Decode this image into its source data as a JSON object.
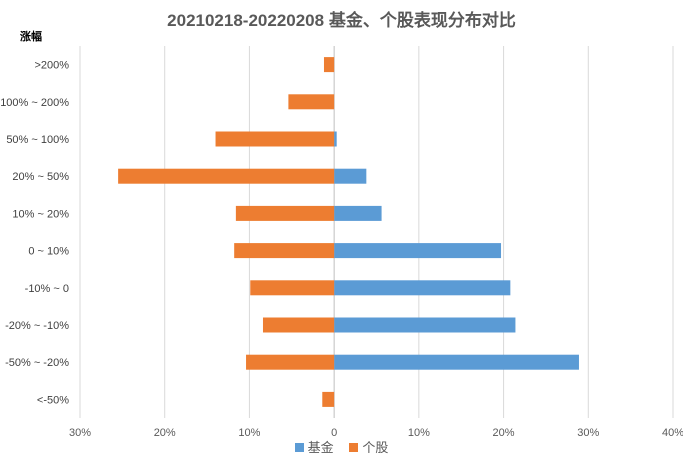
{
  "chart_data": {
    "type": "bar",
    "orientation": "horizontal",
    "title": "20210218-20220208 基金、个股表现分布对比",
    "ylabel": "涨幅",
    "categories": [
      ">200%",
      "100% ~ 200%",
      "50% ~ 100%",
      "20% ~ 50%",
      "10% ~ 20%",
      "0 ~ 10%",
      "-10% ~ 0",
      "-20% ~ -10%",
      "-50% ~ -20%",
      "<-50%"
    ],
    "series": [
      {
        "name": "基金",
        "color": "#5B9BD5",
        "values": [
          0,
          0,
          0.3,
          3.8,
          5.6,
          19.7,
          20.8,
          21.4,
          28.9,
          0
        ]
      },
      {
        "name": "个股",
        "color": "#ED7D31",
        "values": [
          -1.2,
          -5.4,
          -14.0,
          -25.5,
          -11.6,
          -11.8,
          -9.9,
          -8.4,
          -10.4,
          -1.4
        ]
      }
    ],
    "xlim": [
      -30,
      40
    ],
    "xticks": [
      -30,
      -20,
      -10,
      0,
      10,
      20,
      30,
      40
    ],
    "xtick_labels": [
      "30%",
      "20%",
      "10%",
      "0",
      "10%",
      "20%",
      "30%",
      "40%"
    ],
    "grid": true,
    "legend": "bottom"
  }
}
